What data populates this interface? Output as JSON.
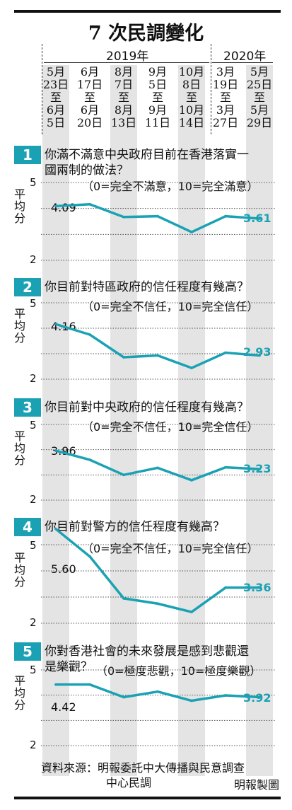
{
  "title": "7 次民調變化",
  "years": [
    "2019年",
    "2020年"
  ],
  "surveys": [
    {
      "lines": [
        "5月",
        "23日",
        "至",
        "6月",
        "5日"
      ]
    },
    {
      "lines": [
        "6月",
        "17日",
        "至",
        "6月",
        "20日"
      ]
    },
    {
      "lines": [
        "8月",
        "7日",
        "至",
        "8月",
        "13日"
      ]
    },
    {
      "lines": [
        "9月",
        "5日",
        "至",
        "9月",
        "11日"
      ]
    },
    {
      "lines": [
        "10月",
        "8日",
        "至",
        "10月",
        "14日"
      ]
    },
    {
      "lines": [
        "3月",
        "19日",
        "至",
        "3月",
        "27日"
      ]
    },
    {
      "lines": [
        "5月",
        "25日",
        "至",
        "5月",
        "29日"
      ]
    }
  ],
  "ylabel": "平均分",
  "colors": {
    "accent": "#1aa2b4",
    "band": "#e4e4e4"
  },
  "questions": [
    {
      "num": "1",
      "text1": "你滿不滿意中央政府目前在香港落實一",
      "text2": "國兩制的做法？",
      "scale": "（0=完全不滿意，10=完全滿意）",
      "first_label": "4.09",
      "last_label": "3.61"
    },
    {
      "num": "2",
      "text1": "你目前對特區政府的信任程度有幾高？",
      "text2": "",
      "scale": "（0=完全不信任，10=完全信任）",
      "first_label": "4.16",
      "last_label": "2.93"
    },
    {
      "num": "3",
      "text1": "你目前對中央政府的信任程度有幾高？",
      "text2": "",
      "scale": "（0=完全不信任，10=完全信任）",
      "first_label": "3.96",
      "last_label": "3.23"
    },
    {
      "num": "4",
      "text1": "你目前對警方的信任程度有幾高？",
      "text2": "",
      "scale": "（0=完全不信任，10=完全信任）",
      "first_label": "5.60",
      "last_label": "3.36"
    },
    {
      "num": "5",
      "text1": "你對香港社會的未來發展是感到悲觀還",
      "text2": "是樂觀？",
      "scale": "（0=極度悲觀，10=極度樂觀）",
      "first_label": "4.42",
      "last_label": "3.92"
    }
  ],
  "chart_data": [
    {
      "type": "line",
      "title": "你滿不滿意中央政府目前在香港落實一國兩制的做法？",
      "categories": [
        "5月23日至6月5日",
        "6月17日至6月20日",
        "8月7日至8月13日",
        "9月5日至9月11日",
        "10月8日至10月14日",
        "3月19日至3月27日",
        "5月25日至5月29日"
      ],
      "values": [
        4.09,
        4.16,
        3.67,
        3.7,
        3.09,
        3.7,
        3.61
      ],
      "ylabel": "平均分",
      "ylim": [
        2,
        5
      ],
      "ytick_labels": [
        "5",
        "2"
      ]
    },
    {
      "type": "line",
      "title": "你目前對特區政府的信任程度有幾高？",
      "categories": [
        "5月23日至6月5日",
        "6月17日至6月20日",
        "8月7日至8月13日",
        "9月5日至9月11日",
        "10月8日至10月14日",
        "3月19日至3月27日",
        "5月25日至5月29日"
      ],
      "values": [
        4.16,
        3.75,
        2.86,
        2.93,
        2.44,
        3.04,
        2.93
      ],
      "ylabel": "平均分",
      "ylim": [
        2,
        5
      ],
      "ytick_labels": [
        "5",
        "2"
      ]
    },
    {
      "type": "line",
      "title": "你目前對中央政府的信任程度有幾高？",
      "categories": [
        "5月23日至6月5日",
        "6月17日至6月20日",
        "8月7日至8月13日",
        "9月5日至9月11日",
        "10月8日至10月14日",
        "3月19日至3月27日",
        "5月25日至5月29日"
      ],
      "values": [
        3.96,
        3.6,
        3.0,
        3.28,
        2.79,
        3.3,
        3.23
      ],
      "ylabel": "平均分",
      "ylim": [
        2,
        5
      ],
      "ytick_labels": [
        "5",
        "2"
      ]
    },
    {
      "type": "line",
      "title": "你目前對警方的信任程度有幾高？",
      "categories": [
        "5月23日至6月5日",
        "6月17日至6月20日",
        "8月7日至8月13日",
        "9月5日至9月11日",
        "10月8日至10月14日",
        "3月19日至3月27日",
        "5月25日至5月29日"
      ],
      "values": [
        5.6,
        4.55,
        2.95,
        2.75,
        2.43,
        3.36,
        3.36
      ],
      "ylabel": "平均分",
      "ylim": [
        2,
        5
      ],
      "ytick_labels": [
        "5",
        "2"
      ]
    },
    {
      "type": "line",
      "title": "你對香港社會的未來發展是感到悲觀還是樂觀？",
      "categories": [
        "5月23日至6月5日",
        "6月17日至6月20日",
        "8月7日至8月13日",
        "9月5日至9月11日",
        "10月8日至10月14日",
        "3月19日至3月27日",
        "5月25日至5月29日"
      ],
      "values": [
        4.42,
        4.42,
        3.92,
        4.14,
        3.78,
        3.99,
        3.92
      ],
      "ylabel": "平均分",
      "ylim": [
        2,
        5
      ],
      "ytick_labels": [
        "5",
        "2"
      ]
    }
  ],
  "source_label": "資料來源：明報委託中大傳播與民意調查",
  "source_line2": "中心民調",
  "credit": "明報製圖"
}
